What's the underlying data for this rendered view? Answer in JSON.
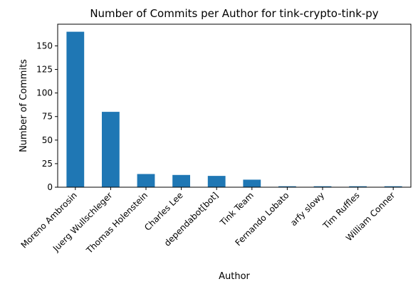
{
  "chart_data": {
    "type": "bar",
    "title": "Number of Commits per Author for tink-crypto-tink-py",
    "xlabel": "Author",
    "ylabel": "Number of Commits",
    "categories": [
      "Moreno Ambrosin",
      "Juerg Wullschleger",
      "Thomas Holenstein",
      "Charles Lee",
      "dependabot[bot]",
      "Tink Team",
      "Fernando Lobato",
      "arfy slowy",
      "Tim Ruffles",
      "William Conner"
    ],
    "values": [
      165,
      80,
      14,
      13,
      12,
      8,
      1,
      1,
      1,
      1
    ],
    "ylim": [
      0,
      173
    ],
    "yticks": [
      0,
      25,
      50,
      75,
      100,
      125,
      150
    ],
    "grid": false,
    "legend": "none",
    "bar_color": "#1f77b4"
  }
}
